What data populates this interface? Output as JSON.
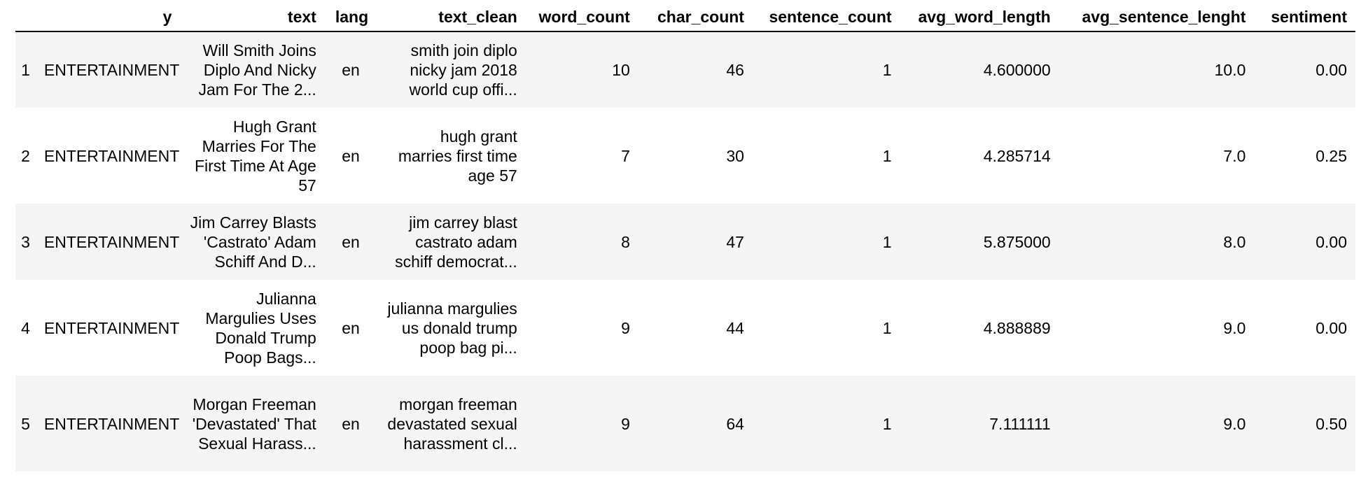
{
  "columns": {
    "index": "",
    "y": "y",
    "text": "text",
    "lang": "lang",
    "text_clean": "text_clean",
    "word_count": "word_count",
    "char_count": "char_count",
    "sentence_count": "sentence_count",
    "avg_word_length": "avg_word_length",
    "avg_sentence_lenght": "avg_sentence_lenght",
    "sentiment": "sentiment"
  },
  "rows": [
    {
      "index": "1",
      "y": "ENTERTAINMENT",
      "text": "Will Smith Joins Diplo And Nicky Jam For The 2...",
      "lang": "en",
      "text_clean": "smith join diplo nicky jam 2018 world cup offi...",
      "word_count": "10",
      "char_count": "46",
      "sentence_count": "1",
      "avg_word_length": "4.600000",
      "avg_sentence_lenght": "10.0",
      "sentiment": "0.00"
    },
    {
      "index": "2",
      "y": "ENTERTAINMENT",
      "text": "Hugh Grant Marries For The First Time At Age 57",
      "lang": "en",
      "text_clean": "hugh grant marries first time age 57",
      "word_count": "7",
      "char_count": "30",
      "sentence_count": "1",
      "avg_word_length": "4.285714",
      "avg_sentence_lenght": "7.0",
      "sentiment": "0.25"
    },
    {
      "index": "3",
      "y": "ENTERTAINMENT",
      "text": "Jim Carrey Blasts 'Castrato' Adam Schiff And D...",
      "lang": "en",
      "text_clean": "jim carrey blast castrato adam schiff democrat...",
      "word_count": "8",
      "char_count": "47",
      "sentence_count": "1",
      "avg_word_length": "5.875000",
      "avg_sentence_lenght": "8.0",
      "sentiment": "0.00"
    },
    {
      "index": "4",
      "y": "ENTERTAINMENT",
      "text": "Julianna Margulies Uses Donald Trump Poop Bags...",
      "lang": "en",
      "text_clean": "julianna margulies us donald trump poop bag pi...",
      "word_count": "9",
      "char_count": "44",
      "sentence_count": "1",
      "avg_word_length": "4.888889",
      "avg_sentence_lenght": "9.0",
      "sentiment": "0.00"
    },
    {
      "index": "5",
      "y": "ENTERTAINMENT",
      "text": "Morgan Freeman 'Devastated' That Sexual Harass...",
      "lang": "en",
      "text_clean": "morgan freeman devastated sexual harassment cl...",
      "word_count": "9",
      "char_count": "64",
      "sentence_count": "1",
      "avg_word_length": "7.111111",
      "avg_sentence_lenght": "9.0",
      "sentiment": "0.50"
    }
  ],
  "colors": {
    "stripe": "#f5f5f5",
    "header_rule": "#000000"
  }
}
